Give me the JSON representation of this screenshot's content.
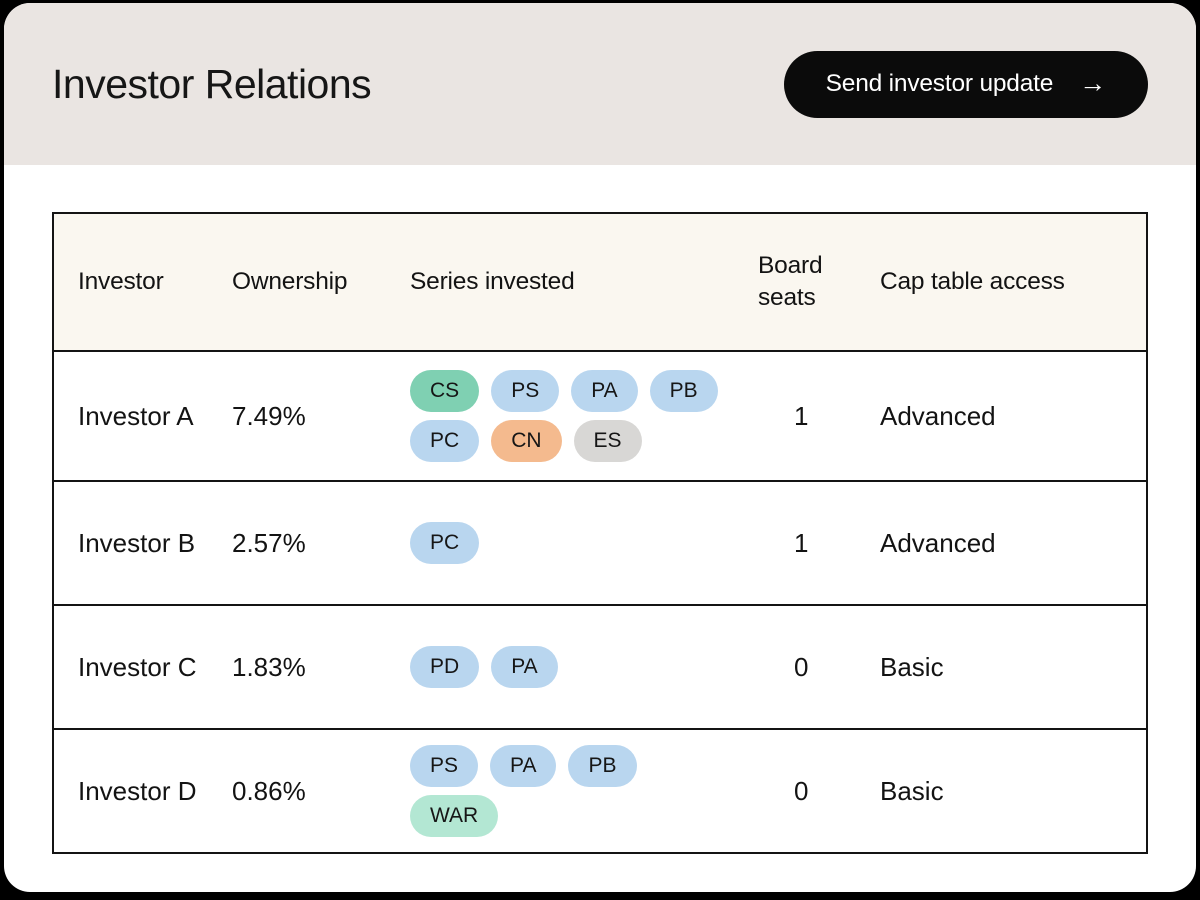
{
  "page": {
    "title": "Investor Relations"
  },
  "header": {
    "button": {
      "label": "Send investor update",
      "arrow": "→"
    }
  },
  "colors": {
    "frame_bg": "#ffffff",
    "band_bg": "#eae5e2",
    "table_header_bg": "#faf7f0",
    "border": "#141414",
    "button_bg": "#0b0b0b",
    "button_text": "#ffffff"
  },
  "palette": {
    "teal": "#7fd0b2",
    "blue": "#b9d6ef",
    "orange": "#f4ba8e",
    "gray": "#d8d7d5",
    "mint": "#b3e7d3"
  },
  "table": {
    "columns": [
      "Investor",
      "Ownership",
      "Series invested",
      "Board seats",
      "Cap table access"
    ],
    "rows": [
      {
        "investor": "Investor A",
        "ownership": "7.49%",
        "series": [
          {
            "label": "CS",
            "color": "teal"
          },
          {
            "label": "PS",
            "color": "blue"
          },
          {
            "label": "PA",
            "color": "blue"
          },
          {
            "label": "PB",
            "color": "blue"
          },
          {
            "label": "PC",
            "color": "blue"
          },
          {
            "label": "CN",
            "color": "orange"
          },
          {
            "label": "ES",
            "color": "gray"
          }
        ],
        "board_seats": "1",
        "cap_table_access": "Advanced"
      },
      {
        "investor": "Investor B",
        "ownership": "2.57%",
        "series": [
          {
            "label": "PC",
            "color": "blue"
          }
        ],
        "board_seats": "1",
        "cap_table_access": "Advanced"
      },
      {
        "investor": "Investor C",
        "ownership": "1.83%",
        "series": [
          {
            "label": "PD",
            "color": "blue"
          },
          {
            "label": "PA",
            "color": "blue"
          }
        ],
        "board_seats": "0",
        "cap_table_access": "Basic"
      },
      {
        "investor": "Investor D",
        "ownership": "0.86%",
        "series": [
          {
            "label": "PS",
            "color": "blue"
          },
          {
            "label": "PA",
            "color": "blue"
          },
          {
            "label": "PB",
            "color": "blue"
          },
          {
            "label": "WAR",
            "color": "mint"
          }
        ],
        "board_seats": "0",
        "cap_table_access": "Basic"
      }
    ]
  }
}
